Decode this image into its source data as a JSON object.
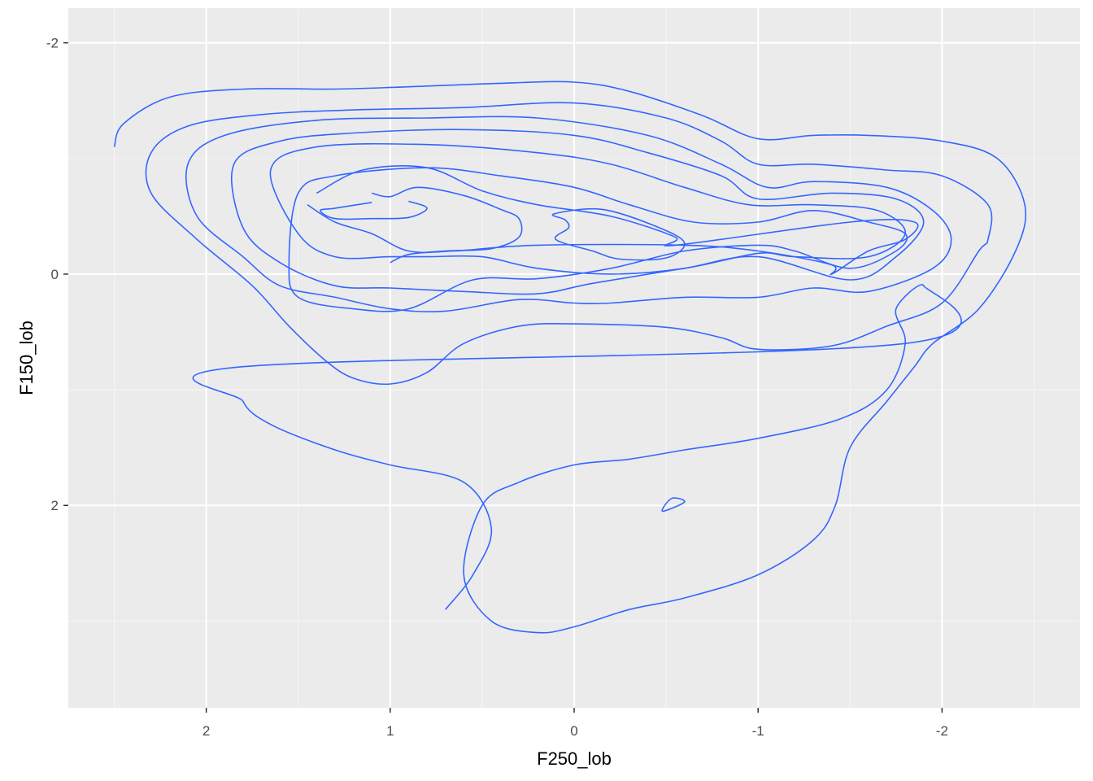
{
  "chart_data": {
    "type": "contour",
    "xlabel": "F250_lob",
    "ylabel": "F150_lob",
    "x_reversed": true,
    "y_reversed": true,
    "xlim": [
      2.75,
      -2.75
    ],
    "ylim": [
      -2.3,
      3.75
    ],
    "x_ticks": [
      2,
      1,
      0,
      -1,
      -2
    ],
    "y_ticks": [
      -2,
      0,
      2
    ],
    "x_tick_labels": [
      "2",
      "1",
      "0",
      "-1",
      "-2"
    ],
    "y_tick_labels": [
      "-2",
      "0",
      "2"
    ],
    "grid": true,
    "colors": {
      "panel": "#ebebeb",
      "grid_major": "#ffffff",
      "grid_minor": "#f5f5f5",
      "contour": "#3366ff"
    },
    "contours": [
      {
        "name": "level-1",
        "points": [
          [
            2.5,
            -1.1
          ],
          [
            2.45,
            -1.3
          ],
          [
            2.2,
            -1.53
          ],
          [
            1.8,
            -1.6
          ],
          [
            1.3,
            -1.6
          ],
          [
            0.9,
            -1.62
          ],
          [
            0.4,
            -1.65
          ],
          [
            0,
            -1.66
          ],
          [
            -0.3,
            -1.58
          ],
          [
            -0.7,
            -1.37
          ],
          [
            -1.0,
            -1.17
          ],
          [
            -1.3,
            -1.2
          ],
          [
            -1.6,
            -1.2
          ],
          [
            -2.0,
            -1.15
          ],
          [
            -2.3,
            -1.0
          ],
          [
            -2.45,
            -0.6
          ],
          [
            -2.4,
            -0.2
          ],
          [
            -2.2,
            0.3
          ],
          [
            -1.95,
            0.6
          ],
          [
            -1.85,
            0.8
          ],
          [
            -1.7,
            1.1
          ],
          [
            -1.5,
            1.5
          ],
          [
            -1.42,
            2.0
          ],
          [
            -1.3,
            2.3
          ],
          [
            -1.0,
            2.6
          ],
          [
            -0.6,
            2.8
          ],
          [
            -0.3,
            2.9
          ],
          [
            0,
            3.05
          ],
          [
            0.2,
            3.1
          ],
          [
            0.45,
            3.0
          ],
          [
            0.6,
            2.6
          ],
          [
            0.5,
            2.0
          ],
          [
            0.3,
            1.8
          ],
          [
            0,
            1.65
          ],
          [
            -0.3,
            1.6
          ],
          [
            -0.6,
            1.52
          ],
          [
            -1.0,
            1.42
          ],
          [
            -1.45,
            1.25
          ],
          [
            -1.7,
            1.0
          ],
          [
            -1.8,
            0.6
          ],
          [
            -1.75,
            0.3
          ],
          [
            -1.9,
            0.1
          ],
          [
            -1.8,
            0.6
          ],
          [
            1.8,
            0.8
          ],
          [
            1.8,
            1.1
          ],
          [
            1.65,
            1.3
          ],
          [
            1.3,
            1.52
          ],
          [
            1.0,
            1.65
          ],
          [
            0.6,
            1.8
          ],
          [
            0.45,
            2.2
          ],
          [
            0.55,
            2.6
          ],
          [
            0.7,
            2.9
          ]
        ]
      },
      {
        "name": "level-2",
        "points": [
          [
            2.3,
            -1.05
          ],
          [
            2.1,
            -1.28
          ],
          [
            1.7,
            -1.38
          ],
          [
            1.2,
            -1.42
          ],
          [
            0.6,
            -1.44
          ],
          [
            0,
            -1.48
          ],
          [
            -0.5,
            -1.35
          ],
          [
            -0.8,
            -1.15
          ],
          [
            -1.0,
            -0.95
          ],
          [
            -1.3,
            -0.95
          ],
          [
            -1.7,
            -0.9
          ],
          [
            -2.0,
            -0.85
          ],
          [
            -2.25,
            -0.6
          ],
          [
            -2.25,
            -0.3
          ],
          [
            -2.2,
            -0.2
          ],
          [
            -2.0,
            0.25
          ],
          [
            -1.7,
            0.45
          ],
          [
            -1.4,
            0.62
          ],
          [
            -1.0,
            0.65
          ],
          [
            -0.8,
            0.55
          ],
          [
            -0.5,
            0.46
          ],
          [
            0,
            0.43
          ],
          [
            0.3,
            0.45
          ],
          [
            0.6,
            0.6
          ],
          [
            0.8,
            0.85
          ],
          [
            1.0,
            0.95
          ],
          [
            1.2,
            0.9
          ],
          [
            1.35,
            0.75
          ],
          [
            1.55,
            0.45
          ],
          [
            1.75,
            0.1
          ],
          [
            2.05,
            -0.3
          ],
          [
            2.3,
            -0.7
          ],
          [
            2.3,
            -1.05
          ]
        ]
      },
      {
        "name": "level-3",
        "points": [
          [
            2.1,
            -0.95
          ],
          [
            1.9,
            -1.2
          ],
          [
            1.4,
            -1.33
          ],
          [
            0.8,
            -1.35
          ],
          [
            0.2,
            -1.35
          ],
          [
            -0.4,
            -1.2
          ],
          [
            -0.8,
            -0.95
          ],
          [
            -1.05,
            -0.75
          ],
          [
            -1.3,
            -0.8
          ],
          [
            -1.7,
            -0.75
          ],
          [
            -1.95,
            -0.55
          ],
          [
            -2.05,
            -0.3
          ],
          [
            -1.95,
            -0.05
          ],
          [
            -1.6,
            0.15
          ],
          [
            -1.3,
            0.12
          ],
          [
            -1.0,
            0.2
          ],
          [
            -0.6,
            0.2
          ],
          [
            -0.2,
            0.25
          ],
          [
            0,
            0.25
          ],
          [
            0.3,
            0.22
          ],
          [
            0.7,
            0.32
          ],
          [
            1.0,
            0.3
          ],
          [
            1.3,
            0.2
          ],
          [
            1.6,
            0.1
          ],
          [
            1.8,
            -0.15
          ],
          [
            2.05,
            -0.5
          ],
          [
            2.1,
            -0.95
          ]
        ]
      },
      {
        "name": "level-4",
        "points": [
          [
            1.85,
            -0.95
          ],
          [
            1.6,
            -1.15
          ],
          [
            1.2,
            -1.22
          ],
          [
            0.6,
            -1.25
          ],
          [
            0,
            -1.2
          ],
          [
            -0.4,
            -1.05
          ],
          [
            -0.8,
            -0.85
          ],
          [
            -1.0,
            -0.65
          ],
          [
            -1.4,
            -0.7
          ],
          [
            -1.75,
            -0.65
          ],
          [
            -1.9,
            -0.45
          ],
          [
            -1.75,
            -0.15
          ],
          [
            -1.5,
            0.05
          ],
          [
            -1.0,
            -0.15
          ],
          [
            -0.6,
            -0.05
          ],
          [
            -0.1,
            0.08
          ],
          [
            0.2,
            0.17
          ],
          [
            0.6,
            0.15
          ],
          [
            1.0,
            0.12
          ],
          [
            1.3,
            0.1
          ],
          [
            1.6,
            -0.1
          ],
          [
            1.8,
            -0.4
          ],
          [
            1.85,
            -0.95
          ]
        ]
      },
      {
        "name": "level-5",
        "points": [
          [
            1.65,
            -0.9
          ],
          [
            1.4,
            -1.1
          ],
          [
            0.8,
            -1.12
          ],
          [
            0.2,
            -1.05
          ],
          [
            -0.2,
            -0.95
          ],
          [
            -0.6,
            -0.75
          ],
          [
            -0.95,
            -0.6
          ],
          [
            -1.3,
            -0.6
          ],
          [
            -1.65,
            -0.55
          ],
          [
            -1.8,
            -0.35
          ],
          [
            -1.6,
            -0.15
          ],
          [
            -1.2,
            -0.15
          ],
          [
            -1.0,
            -0.18
          ],
          [
            -0.6,
            -0.05
          ],
          [
            -0.2,
            0
          ],
          [
            0.2,
            -0.05
          ],
          [
            0.5,
            -0.15
          ],
          [
            0.8,
            -0.15
          ],
          [
            1.0,
            -0.15
          ],
          [
            1.3,
            -0.15
          ],
          [
            1.5,
            -0.35
          ],
          [
            1.65,
            -0.9
          ]
        ]
      },
      {
        "name": "level-6",
        "points": [
          [
            1.5,
            -0.7
          ],
          [
            1.3,
            -0.85
          ],
          [
            0.8,
            -0.92
          ],
          [
            0.4,
            -0.85
          ],
          [
            0,
            -0.75
          ],
          [
            -0.3,
            -0.6
          ],
          [
            -0.65,
            -0.45
          ],
          [
            -1.0,
            -0.45
          ],
          [
            -1.3,
            -0.55
          ],
          [
            -1.6,
            -0.45
          ],
          [
            -1.8,
            -0.35
          ],
          [
            -1.75,
            -0.2
          ],
          [
            -1.5,
            -0.05
          ],
          [
            -1.2,
            -0.2
          ],
          [
            -1.0,
            -0.25
          ],
          [
            -0.6,
            -0.2
          ],
          [
            -0.2,
            -0.05
          ],
          [
            0.2,
            0.04
          ],
          [
            0.55,
            0.05
          ],
          [
            0.9,
            0.3
          ],
          [
            1.2,
            0.3
          ],
          [
            1.5,
            0.2
          ],
          [
            1.55,
            -0.1
          ],
          [
            1.5,
            -0.7
          ]
        ]
      },
      {
        "name": "level-7a",
        "points": [
          [
            1.4,
            -0.7
          ],
          [
            1.15,
            -0.9
          ],
          [
            0.8,
            -0.92
          ],
          [
            0.5,
            -0.72
          ],
          [
            0.2,
            -0.6
          ],
          [
            -0.2,
            -0.5
          ],
          [
            -0.55,
            -0.32
          ],
          [
            -0.55,
            -0.25
          ],
          [
            -1.5,
            -0.45
          ],
          [
            -1.85,
            -0.45
          ],
          [
            -1.8,
            -0.3
          ],
          [
            -1.6,
            -0.2
          ],
          [
            -1.4,
            0
          ],
          [
            -1.4,
            -0.08
          ],
          [
            -1.0,
            -0.2
          ],
          [
            -0.6,
            -0.25
          ],
          [
            0.2,
            -0.25
          ],
          [
            0.65,
            -0.2
          ],
          [
            0.9,
            -0.2
          ],
          [
            1.1,
            -0.35
          ],
          [
            1.3,
            -0.45
          ],
          [
            1.45,
            -0.6
          ]
        ]
      },
      {
        "name": "level-7b",
        "points": [
          [
            1.1,
            -0.7
          ],
          [
            1.0,
            -0.67
          ],
          [
            0.85,
            -0.75
          ],
          [
            0.6,
            -0.68
          ],
          [
            0.4,
            -0.56
          ],
          [
            0.3,
            -0.48
          ],
          [
            0.3,
            -0.32
          ],
          [
            0.45,
            -0.22
          ],
          [
            0.7,
            -0.2
          ],
          [
            0.9,
            -0.17
          ],
          [
            1.0,
            -0.1
          ]
        ]
      },
      {
        "name": "level-8a",
        "points": [
          [
            1.1,
            -0.62
          ],
          [
            1.3,
            -0.57
          ],
          [
            1.38,
            -0.55
          ],
          [
            1.3,
            -0.48
          ],
          [
            1.1,
            -0.48
          ],
          [
            0.9,
            -0.49
          ],
          [
            0.8,
            -0.57
          ],
          [
            0.9,
            -0.63
          ]
        ]
      },
      {
        "name": "level-8b",
        "points": [
          [
            0.11,
            -0.52
          ],
          [
            0.05,
            -0.47
          ],
          [
            0.03,
            -0.4
          ],
          [
            0.1,
            -0.3
          ],
          [
            -0.1,
            -0.2
          ],
          [
            -0.25,
            -0.13
          ],
          [
            -0.5,
            -0.14
          ],
          [
            -0.6,
            -0.27
          ],
          [
            -0.45,
            -0.41
          ],
          [
            -0.15,
            -0.56
          ],
          [
            0.11,
            -0.52
          ]
        ]
      },
      {
        "name": "level-9",
        "points": [
          [
            -0.48,
            2.05
          ],
          [
            -0.6,
            1.97
          ],
          [
            -0.53,
            1.94
          ],
          [
            -0.48,
            2.05
          ]
        ]
      }
    ]
  }
}
